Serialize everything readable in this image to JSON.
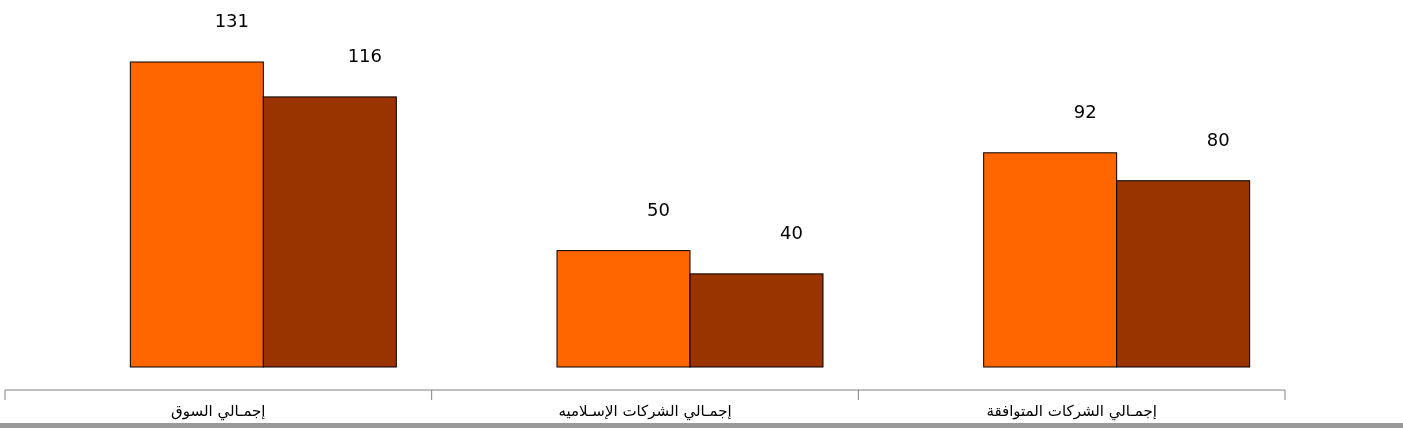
{
  "chart_data": {
    "type": "bar",
    "categories": [
      "إجمـالي السوق",
      "إجمـالي الشركات الإسـلاميه",
      "إجمـالي الشركات المتوافقة"
    ],
    "series": [
      {
        "color": "#ff6600",
        "values": [
          131,
          50,
          92
        ]
      },
      {
        "color": "#993300",
        "values": [
          116,
          40,
          80
        ]
      }
    ],
    "data_labels": true
  }
}
